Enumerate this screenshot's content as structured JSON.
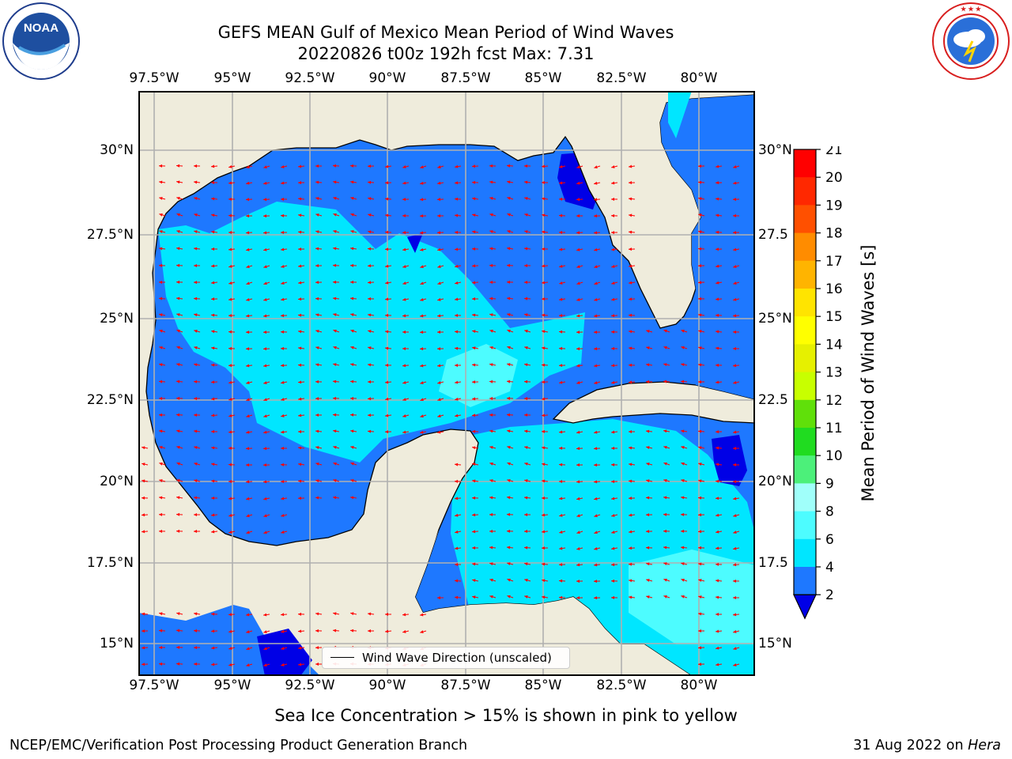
{
  "title": {
    "line1": "GEFS MEAN Gulf of Mexico Mean Period of Wind Waves",
    "line2": "20220826 t00z 192h fcst   Max: 7.31"
  },
  "logos": {
    "noaa": {
      "text": "NOAA",
      "ring_text": "NATIONAL OCEANIC AND ATMOSPHERIC ADMINISTRATION · U.S. DEPARTMENT OF COMMERCE"
    },
    "nws": {
      "ring_text": "NATIONAL WEATHER SERVICE"
    }
  },
  "map": {
    "lon_labels": [
      "97.5°W",
      "95°W",
      "92.5°W",
      "90°W",
      "87.5°W",
      "85°W",
      "82.5°W",
      "80°W"
    ],
    "lat_labels_left": [
      "30°N",
      "27.5°N",
      "25°N",
      "22.5°N",
      "20°N",
      "17.5°N",
      "15°N"
    ],
    "lat_labels_right": [
      "30°N",
      "27.5",
      "25°N",
      "22.5",
      "20°N",
      "17.5",
      "15°N"
    ],
    "legend_label": "Wind Wave Direction (unscaled)",
    "colors": {
      "land": "#efecdc",
      "level_2_4": "#1e78ff",
      "level_4_6": "#00e6ff",
      "level_6_8": "#4dfcff",
      "level_lt_2": "#0000e6",
      "arrow": "#ff0000",
      "grid": "#b0b0b0"
    }
  },
  "colorbar": {
    "label": "Mean Period of Wind Waves [s]",
    "ticks": [
      "2",
      "4",
      "6",
      "8",
      "9",
      "10",
      "11",
      "12",
      "13",
      "14",
      "15",
      "16",
      "17",
      "18",
      "19",
      "20",
      "21"
    ],
    "colors": [
      "#0000e6",
      "#1e78ff",
      "#00e6ff",
      "#4dfcff",
      "#a0fffa",
      "#4cf07a",
      "#20dc20",
      "#60e00a",
      "#c8ff00",
      "#e6f000",
      "#ffff00",
      "#ffe400",
      "#ffb400",
      "#ff8c00",
      "#ff5000",
      "#ff2800",
      "#ff0000"
    ]
  },
  "footer": {
    "sea_ice": "Sea Ice Concentration > 15% is shown in pink to yellow",
    "left": "NCEP/EMC/Verification Post Processing Product Generation Branch",
    "date": "31 Aug 2022 on ",
    "machine": "Hera"
  }
}
